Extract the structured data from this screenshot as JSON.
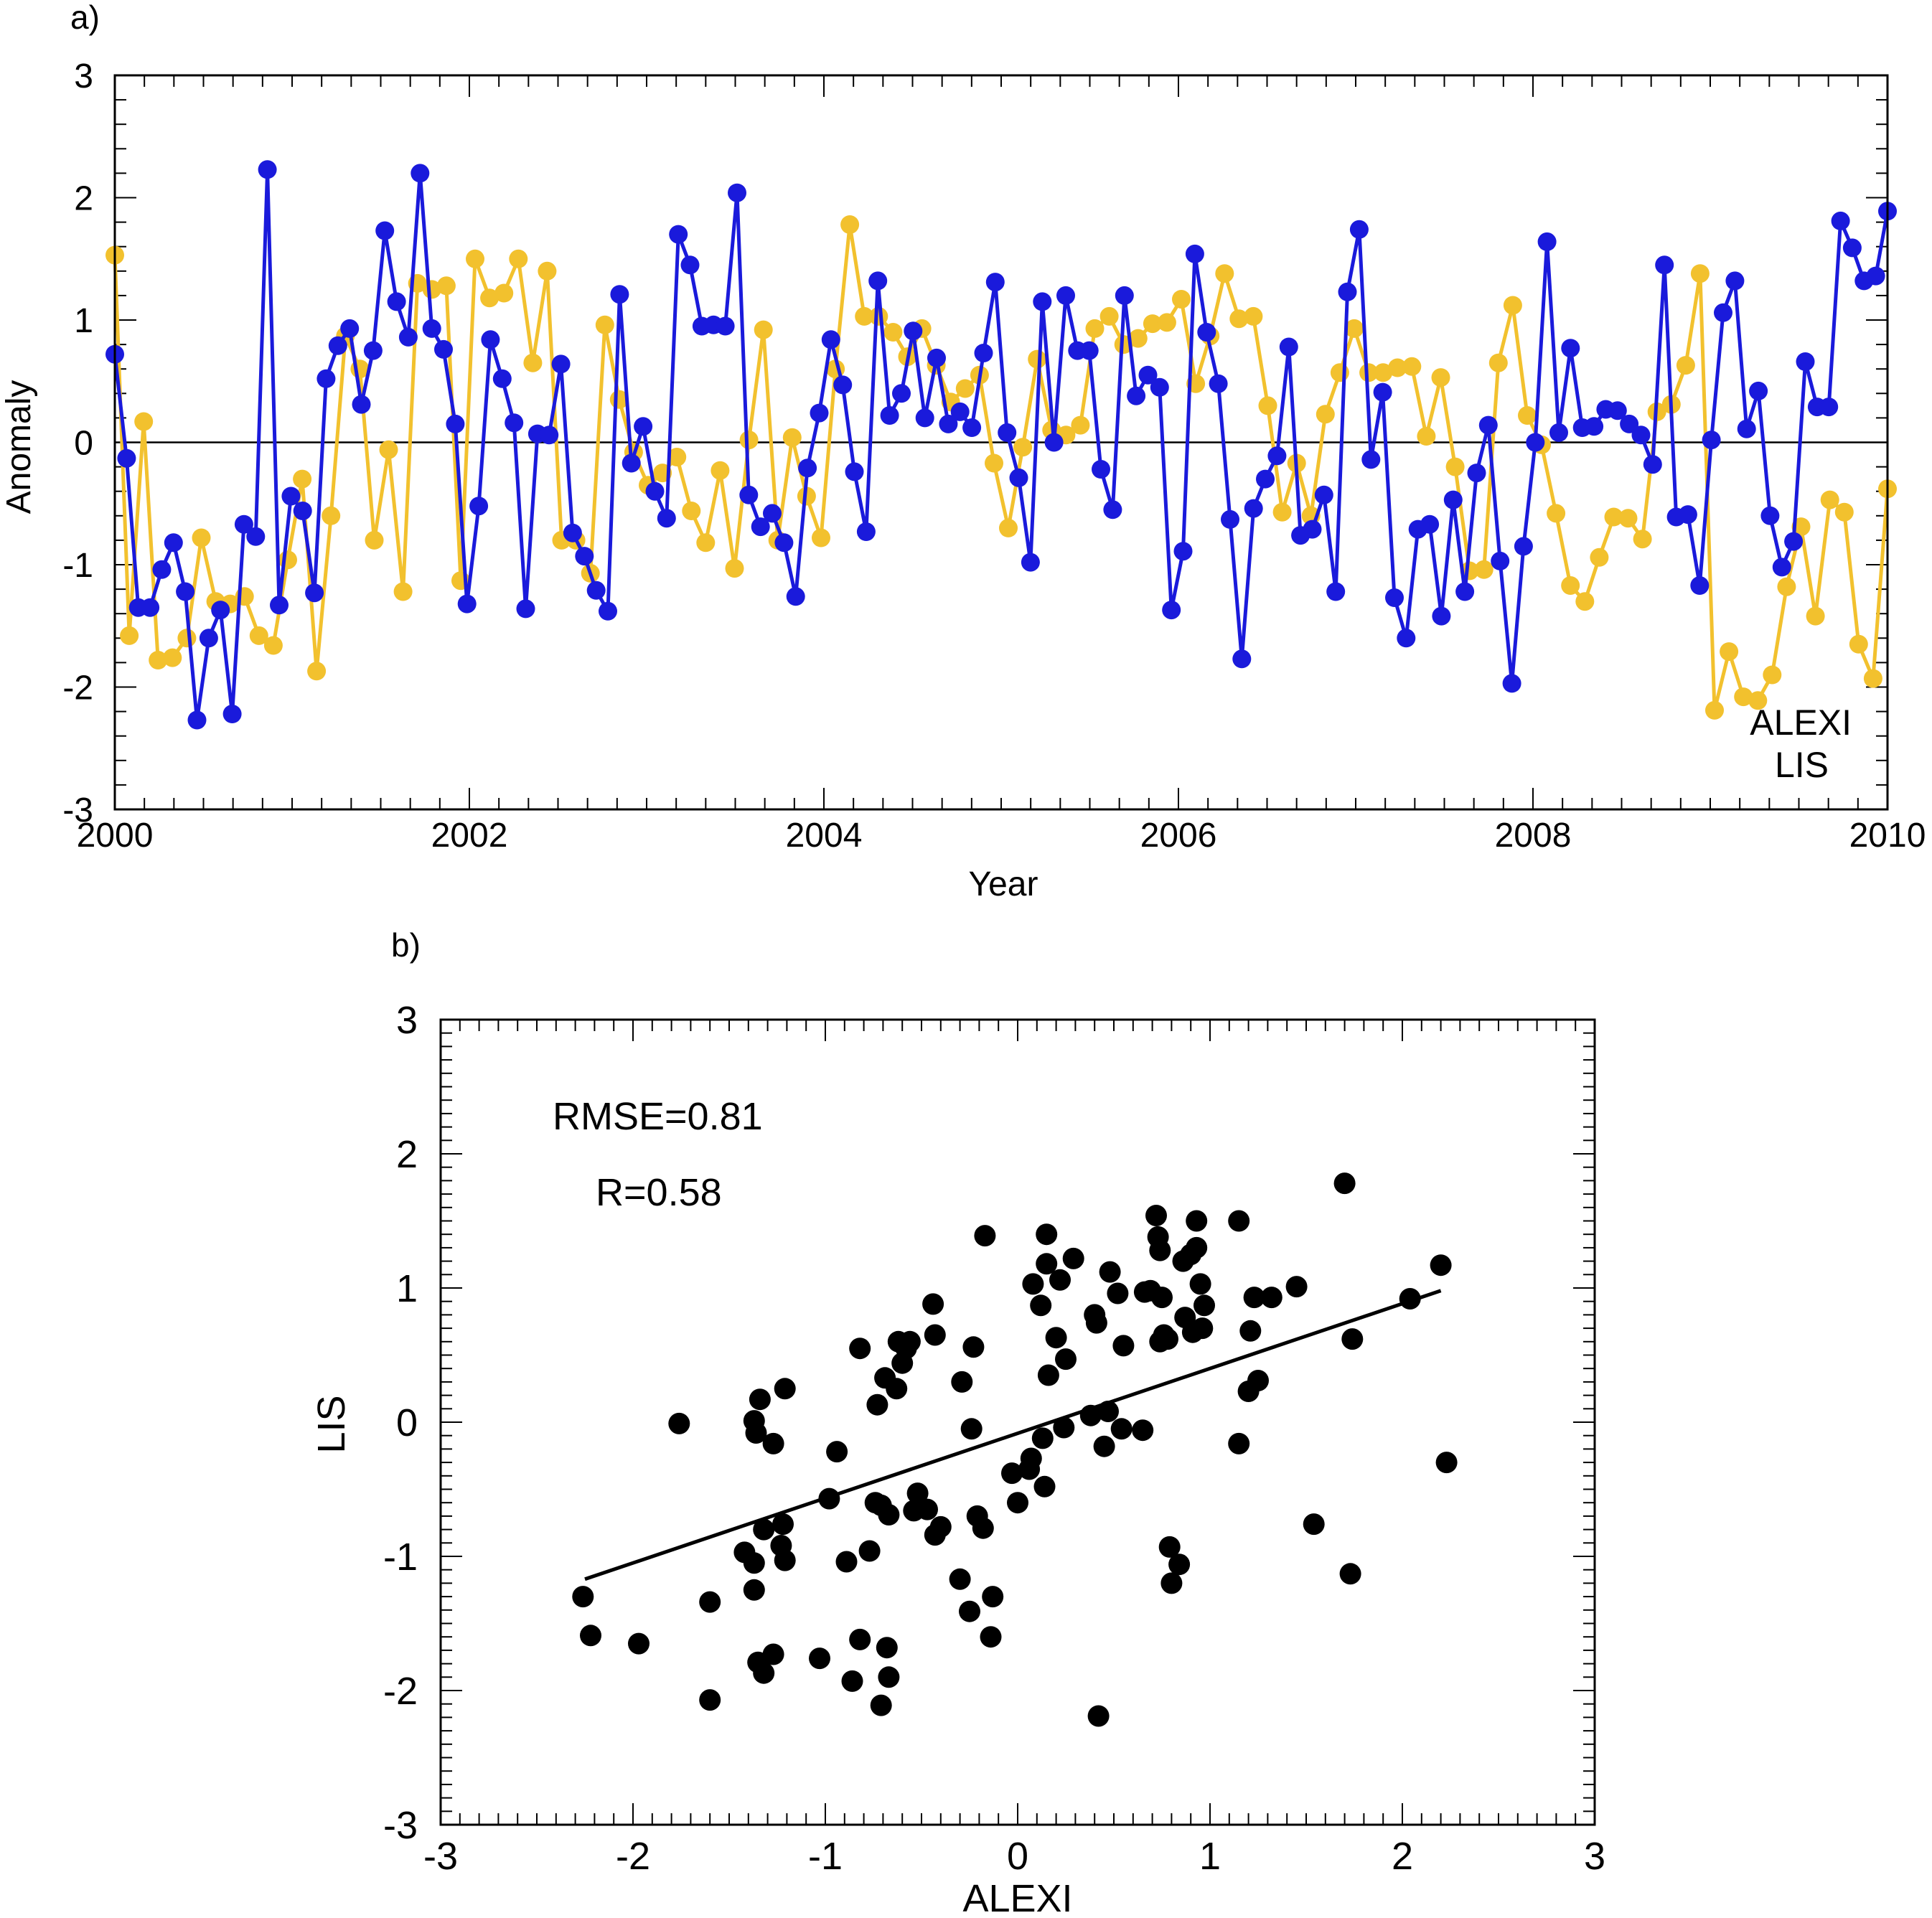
{
  "chart_data": [
    {
      "panel_label": "a)",
      "type": "line",
      "xlabel": "Year",
      "ylabel": "Anomaly",
      "xlim": [
        2000,
        2010
      ],
      "ylim": [
        -3,
        3
      ],
      "xticks": [
        "2000",
        "2002",
        "2004",
        "2006",
        "2008",
        "2010"
      ],
      "yticks": [
        "3",
        "2",
        "1",
        "0",
        "-1",
        "-2",
        "-3"
      ],
      "grid": false,
      "zero_line": true,
      "legend_position": "bottom-right",
      "series": [
        {
          "name": "LIS",
          "color": "#f2c12e",
          "values": [
            1.53,
            -1.58,
            0.17,
            -1.78,
            -1.76,
            -1.6,
            -0.78,
            -1.3,
            -1.32,
            -1.26,
            -1.58,
            -1.66,
            -0.96,
            -0.3,
            -1.87,
            -0.6,
            0.87,
            0.6,
            -0.8,
            -0.06,
            -1.22,
            1.3,
            1.25,
            1.28,
            -1.13,
            1.5,
            1.18,
            1.22,
            1.5,
            0.65,
            1.4,
            -0.8,
            -0.8,
            -1.07,
            0.96,
            0.35,
            -0.08,
            -0.35,
            -0.25,
            -0.12,
            -0.56,
            -0.82,
            -0.23,
            -1.03,
            0.02,
            0.92,
            -0.8,
            0.04,
            -0.44,
            -0.78,
            0.6,
            1.78,
            1.03,
            1.03,
            0.9,
            0.7,
            0.93,
            0.63,
            0.33,
            0.44,
            0.55,
            -0.17,
            -0.7,
            -0.04,
            0.68,
            0.1,
            0.06,
            0.14,
            0.93,
            1.03,
            0.8,
            0.85,
            0.97,
            0.98,
            1.17,
            0.48,
            0.87,
            1.38,
            1.01,
            1.03,
            0.3,
            -0.57,
            -0.17,
            -0.6,
            0.23,
            0.57,
            0.93,
            0.57,
            0.57,
            0.61,
            0.62,
            0.05,
            0.53,
            -0.2,
            -1.05,
            -1.04,
            0.65,
            1.12,
            0.22,
            -0.02,
            -0.58,
            -1.17,
            -1.3,
            -0.94,
            -0.61,
            -0.62,
            -0.79,
            0.25,
            0.31,
            0.63,
            1.38,
            -2.19,
            -1.71,
            -2.08,
            -2.11,
            -1.9,
            -1.18,
            -0.69,
            -1.42,
            -0.47,
            -0.57,
            -1.65,
            -1.93,
            -0.38
          ]
        },
        {
          "name": "ALEXI",
          "color": "#1a1adb",
          "values": [
            0.72,
            -0.13,
            -1.35,
            -1.35,
            -1.04,
            -0.82,
            -1.22,
            -2.27,
            -1.6,
            -1.37,
            -2.22,
            -0.67,
            -0.77,
            2.23,
            -1.33,
            -0.44,
            -0.56,
            -1.23,
            0.52,
            0.79,
            0.93,
            0.31,
            0.75,
            1.73,
            1.15,
            0.86,
            2.2,
            0.93,
            0.76,
            0.15,
            -1.32,
            -0.52,
            0.84,
            0.52,
            0.16,
            -1.36,
            0.07,
            0.06,
            0.64,
            -0.74,
            -0.93,
            -1.21,
            -1.38,
            1.21,
            -0.17,
            0.13,
            -0.4,
            -0.62,
            1.7,
            1.45,
            0.95,
            0.96,
            0.95,
            2.04,
            -0.43,
            -0.69,
            -0.58,
            -0.82,
            -1.26,
            -0.21,
            0.24,
            0.84,
            0.47,
            -0.24,
            -0.73,
            1.32,
            0.22,
            0.4,
            0.91,
            0.2,
            0.69,
            0.15,
            0.25,
            0.12,
            0.73,
            1.31,
            0.08,
            -0.29,
            -0.98,
            1.15,
            0.0,
            1.2,
            0.75,
            0.75,
            -0.22,
            -0.55,
            1.2,
            0.38,
            0.55,
            0.45,
            -1.37,
            -0.89,
            1.54,
            0.9,
            0.48,
            -0.63,
            -1.77,
            -0.54,
            -0.3,
            -0.11,
            0.78,
            -0.76,
            -0.71,
            -0.43,
            -1.22,
            1.23,
            1.74,
            -0.14,
            0.41,
            -1.27,
            -1.6,
            -0.71,
            -0.67,
            -1.42,
            -0.47,
            -1.22,
            -0.25,
            0.14,
            -0.97,
            -1.97,
            -0.85,
            0.0,
            1.64,
            0.08,
            0.77,
            0.12,
            0.13,
            0.27,
            0.26,
            0.15,
            0.06,
            -0.18,
            1.45,
            -0.61,
            -0.59,
            -1.17,
            0.02,
            1.06,
            1.32,
            0.11,
            0.42,
            -0.6,
            -1.02,
            -0.81,
            0.66,
            0.29,
            0.29,
            1.81,
            1.59,
            1.32,
            1.36,
            1.89
          ]
        }
      ]
    },
    {
      "panel_label": "b)",
      "type": "scatter",
      "xlabel": "ALEXI",
      "ylabel": "LIS",
      "xlim": [
        -3,
        3
      ],
      "ylim": [
        -3,
        3
      ],
      "xticks": [
        "-3",
        "-2",
        "-1",
        "0",
        "1",
        "2",
        "3"
      ],
      "yticks": [
        "3",
        "2",
        "1",
        "0",
        "-1",
        "-2",
        "-3"
      ],
      "grid": false,
      "annotations": [
        "RMSE=0.81",
        "R=0.58"
      ],
      "fit_line": {
        "x": [
          -2.25,
          2.2
        ],
        "y": [
          -1.17,
          0.98
        ]
      },
      "points": [
        [
          -2.26,
          -1.3
        ],
        [
          -2.22,
          -1.59
        ],
        [
          -1.97,
          -1.65
        ],
        [
          -1.76,
          -0.01
        ],
        [
          -1.6,
          -1.34
        ],
        [
          -1.6,
          -2.07
        ],
        [
          -1.42,
          -0.97
        ],
        [
          -1.37,
          -1.25
        ],
        [
          -1.37,
          -1.05
        ],
        [
          -1.37,
          0.01
        ],
        [
          -1.36,
          -0.08
        ],
        [
          -1.35,
          -1.79
        ],
        [
          -1.34,
          0.17
        ],
        [
          -1.32,
          -1.87
        ],
        [
          -1.32,
          -0.8
        ],
        [
          -1.27,
          -0.16
        ],
        [
          -1.27,
          -1.73
        ],
        [
          -1.23,
          -0.92
        ],
        [
          -1.22,
          -0.76
        ],
        [
          -1.21,
          -1.03
        ],
        [
          -1.21,
          0.25
        ],
        [
          -1.03,
          -1.76
        ],
        [
          -0.98,
          -0.57
        ],
        [
          -0.94,
          -0.22
        ],
        [
          -0.89,
          -1.04
        ],
        [
          -0.86,
          -1.93
        ],
        [
          -0.82,
          0.55
        ],
        [
          -0.82,
          -1.62
        ],
        [
          -0.77,
          -0.96
        ],
        [
          -0.74,
          -0.6
        ],
        [
          -0.73,
          0.13
        ],
        [
          -0.71,
          -2.11
        ],
        [
          -0.71,
          -0.62
        ],
        [
          -0.69,
          0.33
        ],
        [
          -0.68,
          -1.68
        ],
        [
          -0.67,
          -1.9
        ],
        [
          -0.67,
          -0.69
        ],
        [
          -0.63,
          0.25
        ],
        [
          -0.62,
          0.6
        ],
        [
          -0.6,
          0.44
        ],
        [
          -0.58,
          0.55
        ],
        [
          -0.56,
          0.6
        ],
        [
          -0.54,
          -0.66
        ],
        [
          -0.52,
          -0.53
        ],
        [
          -0.47,
          -0.65
        ],
        [
          -0.44,
          0.88
        ],
        [
          -0.43,
          0.65
        ],
        [
          -0.43,
          -0.84
        ],
        [
          -0.4,
          -0.78
        ],
        [
          -0.3,
          -1.17
        ],
        [
          -0.29,
          0.3
        ],
        [
          -0.25,
          -1.41
        ],
        [
          -0.24,
          -0.05
        ],
        [
          -0.23,
          0.56
        ],
        [
          -0.21,
          -0.7
        ],
        [
          -0.18,
          -0.79
        ],
        [
          -0.17,
          1.39
        ],
        [
          -0.14,
          -1.6
        ],
        [
          -0.13,
          -1.3
        ],
        [
          -0.03,
          -0.38
        ],
        [
          0.0,
          -0.6
        ],
        [
          0.06,
          -0.35
        ],
        [
          0.07,
          -0.27
        ],
        [
          0.08,
          1.03
        ],
        [
          0.12,
          0.87
        ],
        [
          0.13,
          -0.12
        ],
        [
          0.14,
          -0.48
        ],
        [
          0.15,
          1.18
        ],
        [
          0.15,
          1.4
        ],
        [
          0.16,
          0.35
        ],
        [
          0.2,
          0.63
        ],
        [
          0.22,
          1.06
        ],
        [
          0.24,
          -0.04
        ],
        [
          0.25,
          0.47
        ],
        [
          0.29,
          1.22
        ],
        [
          0.38,
          0.05
        ],
        [
          0.4,
          0.8
        ],
        [
          0.41,
          0.74
        ],
        [
          0.42,
          -2.19
        ],
        [
          0.45,
          -0.18
        ],
        [
          0.47,
          0.08
        ],
        [
          0.48,
          1.12
        ],
        [
          0.52,
          0.96
        ],
        [
          0.54,
          -0.05
        ],
        [
          0.55,
          0.57
        ],
        [
          0.65,
          -0.06
        ],
        [
          0.66,
          0.97
        ],
        [
          0.69,
          0.98
        ],
        [
          0.72,
          1.54
        ],
        [
          0.73,
          1.38
        ],
        [
          0.74,
          1.28
        ],
        [
          0.74,
          0.6
        ],
        [
          0.75,
          0.93
        ],
        [
          0.76,
          0.65
        ],
        [
          0.78,
          0.62
        ],
        [
          0.79,
          -0.93
        ],
        [
          0.8,
          -1.2
        ],
        [
          0.84,
          -1.06
        ],
        [
          0.86,
          1.2
        ],
        [
          0.87,
          0.78
        ],
        [
          0.9,
          1.25
        ],
        [
          0.91,
          0.67
        ],
        [
          0.93,
          1.3
        ],
        [
          0.93,
          1.5
        ],
        [
          0.95,
          1.03
        ],
        [
          0.96,
          0.7
        ],
        [
          0.97,
          0.87
        ],
        [
          1.15,
          1.5
        ],
        [
          1.15,
          -0.16
        ],
        [
          1.2,
          0.23
        ],
        [
          1.21,
          0.68
        ],
        [
          1.23,
          0.93
        ],
        [
          1.25,
          0.31
        ],
        [
          1.32,
          0.93
        ],
        [
          1.45,
          1.01
        ],
        [
          1.54,
          -0.76
        ],
        [
          1.7,
          1.78
        ],
        [
          1.73,
          -1.13
        ],
        [
          1.74,
          0.62
        ],
        [
          2.04,
          0.92
        ],
        [
          2.2,
          1.17
        ],
        [
          2.23,
          -0.3
        ]
      ]
    }
  ]
}
